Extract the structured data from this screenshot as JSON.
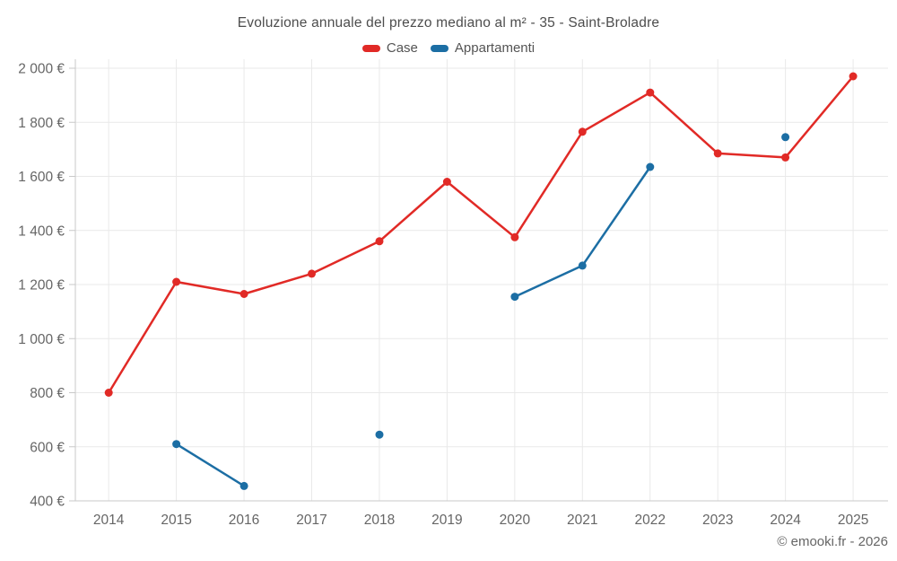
{
  "copyright": "© emooki.fr - 2026",
  "colors": {
    "case_red": "#e12a26",
    "appartamenti_blue": "#1c6ea4",
    "grid": "#e9e9e9",
    "axis": "#c9c9c9",
    "tick_text": "#666666",
    "title_text": "#4d4d4d"
  },
  "chart_data": {
    "type": "line",
    "title": "Evoluzione annuale del prezzo mediano al m² - 35 - Saint-Broladre",
    "xlabel": "",
    "ylabel": "",
    "categories": [
      "2014",
      "2015",
      "2016",
      "2017",
      "2018",
      "2019",
      "2020",
      "2021",
      "2022",
      "2023",
      "2024",
      "2025"
    ],
    "series": [
      {
        "name": "Case",
        "color": "#e12a26",
        "values": [
          800,
          1210,
          1165,
          1240,
          1360,
          1580,
          1375,
          1765,
          1910,
          1685,
          1670,
          1970
        ]
      },
      {
        "name": "Appartamenti",
        "color": "#1c6ea4",
        "values": [
          null,
          610,
          455,
          null,
          645,
          null,
          1155,
          1270,
          1635,
          null,
          1745,
          null
        ]
      }
    ],
    "ylim": [
      400,
      2000
    ],
    "ytick_step": 200,
    "ytick_labels": [
      "400 €",
      "600 €",
      "800 €",
      "1 000 €",
      "1 200 €",
      "1 400 €",
      "1 600 €",
      "1 800 €",
      "2 000 €"
    ],
    "grid": true,
    "legend_position": "top",
    "marker_radius": 4.5,
    "line_width": 2.5
  }
}
